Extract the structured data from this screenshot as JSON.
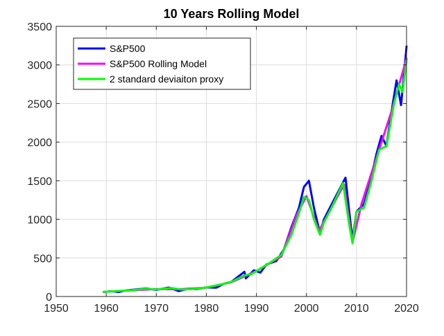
{
  "chart_data": {
    "type": "line",
    "title": "10 Years Rolling Model",
    "xlabel": "",
    "ylabel": "",
    "xlim": [
      1950,
      2020
    ],
    "ylim": [
      0,
      3500
    ],
    "grid": true,
    "legend_position": "top-left",
    "x_ticks": [
      1950,
      1960,
      1970,
      1980,
      1990,
      2000,
      2010,
      2020
    ],
    "y_ticks": [
      0,
      500,
      1000,
      1500,
      2000,
      2500,
      3000,
      3500
    ],
    "series": [
      {
        "name": "S&P500",
        "color": "#0000ff",
        "points": [
          [
            1959.5,
            58
          ],
          [
            1961,
            68
          ],
          [
            1962.5,
            57
          ],
          [
            1964,
            80
          ],
          [
            1966,
            92
          ],
          [
            1968,
            104
          ],
          [
            1970,
            85
          ],
          [
            1972.5,
            116
          ],
          [
            1974.5,
            70
          ],
          [
            1976.5,
            102
          ],
          [
            1978,
            95
          ],
          [
            1980,
            118
          ],
          [
            1982,
            115
          ],
          [
            1983.5,
            165
          ],
          [
            1985,
            190
          ],
          [
            1987.6,
            320
          ],
          [
            1987.9,
            235
          ],
          [
            1989.5,
            340
          ],
          [
            1990.8,
            310
          ],
          [
            1992,
            415
          ],
          [
            1994,
            460
          ],
          [
            1995.5,
            610
          ],
          [
            1997,
            900
          ],
          [
            1998.5,
            1150
          ],
          [
            1999.5,
            1420
          ],
          [
            2000.5,
            1500
          ],
          [
            2001.5,
            1150
          ],
          [
            2002.7,
            820
          ],
          [
            2003.5,
            1000
          ],
          [
            2005,
            1190
          ],
          [
            2007.8,
            1540
          ],
          [
            2008.9,
            900
          ],
          [
            2009.2,
            740
          ],
          [
            2010,
            1100
          ],
          [
            2011.5,
            1200
          ],
          [
            2012.5,
            1420
          ],
          [
            2014,
            1850
          ],
          [
            2015,
            2080
          ],
          [
            2016,
            1950
          ],
          [
            2017,
            2400
          ],
          [
            2018,
            2800
          ],
          [
            2018.9,
            2480
          ],
          [
            2019.6,
            2950
          ],
          [
            2020,
            3240
          ]
        ]
      },
      {
        "name": "S&P500 Rolling Model",
        "color": "#ff00ff",
        "points": [
          [
            1959.5,
            60
          ],
          [
            1965,
            80
          ],
          [
            1970,
            95
          ],
          [
            1975,
            95
          ],
          [
            1980,
            115
          ],
          [
            1985,
            185
          ],
          [
            1990,
            330
          ],
          [
            1995,
            520
          ],
          [
            1998,
            1050
          ],
          [
            2000,
            1300
          ],
          [
            2002.5,
            850
          ],
          [
            2005,
            1150
          ],
          [
            2007.5,
            1450
          ],
          [
            2009.2,
            700
          ],
          [
            2011,
            1200
          ],
          [
            2014,
            1800
          ],
          [
            2017,
            2400
          ],
          [
            2020,
            3080
          ]
        ]
      },
      {
        "name": "2 standard deviaiton proxy",
        "color": "#00ff00",
        "points": [
          [
            1959.5,
            60
          ],
          [
            1962,
            70
          ],
          [
            1965,
            82
          ],
          [
            1968,
            100
          ],
          [
            1970,
            90
          ],
          [
            1973,
            110
          ],
          [
            1975,
            90
          ],
          [
            1978,
            100
          ],
          [
            1980,
            118
          ],
          [
            1983,
            155
          ],
          [
            1985,
            190
          ],
          [
            1987.5,
            270
          ],
          [
            1989,
            290
          ],
          [
            1991,
            370
          ],
          [
            1993,
            450
          ],
          [
            1995,
            540
          ],
          [
            1997,
            800
          ],
          [
            1998.5,
            1080
          ],
          [
            1999.5,
            1290
          ],
          [
            2000.5,
            1250
          ],
          [
            2001.5,
            1000
          ],
          [
            2002.7,
            800
          ],
          [
            2003.5,
            960
          ],
          [
            2005,
            1150
          ],
          [
            2007.3,
            1470
          ],
          [
            2008.5,
            950
          ],
          [
            2009.2,
            690
          ],
          [
            2010,
            1100
          ],
          [
            2011.5,
            1150
          ],
          [
            2013,
            1500
          ],
          [
            2014.5,
            1900
          ],
          [
            2016,
            1950
          ],
          [
            2017.5,
            2500
          ],
          [
            2018.5,
            2750
          ],
          [
            2019.2,
            2650
          ],
          [
            2020,
            3060
          ]
        ]
      }
    ]
  }
}
